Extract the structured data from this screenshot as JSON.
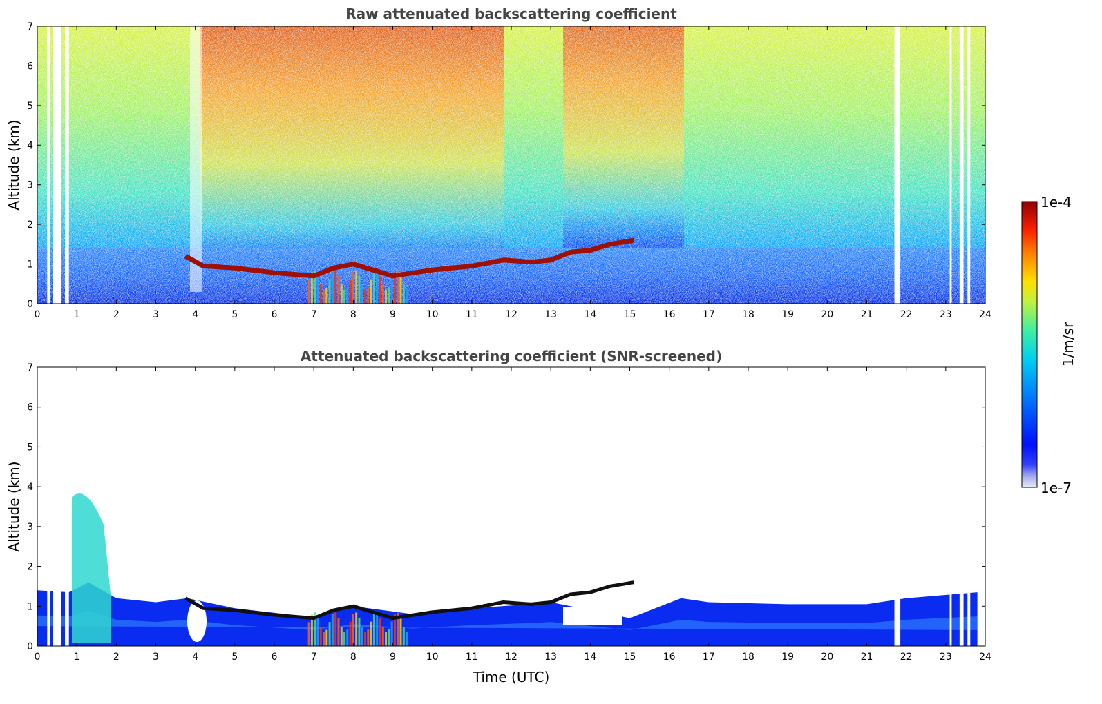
{
  "chart_data": [
    {
      "type": "heatmap",
      "title": "Raw attenuated backscattering coefficient",
      "xlabel": "",
      "ylabel": "Altitude (km)",
      "xlim": [
        0,
        24
      ],
      "ylim": [
        0,
        7
      ],
      "xticks": [
        0,
        1,
        2,
        3,
        4,
        5,
        6,
        7,
        8,
        9,
        10,
        11,
        12,
        13,
        14,
        15,
        16,
        17,
        18,
        19,
        20,
        21,
        22,
        23,
        24
      ],
      "yticks": [
        0,
        1,
        2,
        3,
        4,
        5,
        6,
        7
      ],
      "grid": false,
      "cloud_layer": {
        "x": [
          3.75,
          4.2,
          5,
          6,
          7,
          7.5,
          8,
          9,
          10,
          11,
          11.8,
          12.5,
          13,
          13.5,
          14,
          14.5,
          15.1
        ],
        "y": [
          1.2,
          0.95,
          0.9,
          0.78,
          0.7,
          0.9,
          1.0,
          0.7,
          0.85,
          0.95,
          1.1,
          1.05,
          1.1,
          1.3,
          1.35,
          1.5,
          1.6
        ]
      },
      "data_gaps_hours": [
        [
          0.25,
          0.32
        ],
        [
          0.4,
          0.6
        ],
        [
          0.7,
          0.8
        ],
        [
          21.7,
          21.85
        ],
        [
          23.1,
          23.15
        ],
        [
          23.35,
          23.45
        ],
        [
          23.55,
          23.62
        ]
      ]
    },
    {
      "type": "heatmap",
      "title": "Attenuated backscattering coefficient (SNR-screened)",
      "xlabel": "Time (UTC)",
      "ylabel": "Altitude (km)",
      "xlim": [
        0,
        24
      ],
      "ylim": [
        0,
        7
      ],
      "xticks": [
        0,
        1,
        2,
        3,
        4,
        5,
        6,
        7,
        8,
        9,
        10,
        11,
        12,
        13,
        14,
        15,
        16,
        17,
        18,
        19,
        20,
        21,
        22,
        23,
        24
      ],
      "yticks": [
        0,
        1,
        2,
        3,
        4,
        5,
        6,
        7
      ],
      "grid": false,
      "cloud_layer": {
        "x": [
          3.75,
          4.2,
          5,
          6,
          7,
          7.5,
          8,
          9,
          10,
          11,
          11.8,
          12.5,
          13,
          13.5,
          14,
          14.5,
          15.1
        ],
        "y": [
          1.2,
          0.95,
          0.9,
          0.78,
          0.7,
          0.9,
          1.0,
          0.7,
          0.85,
          0.95,
          1.1,
          1.05,
          1.1,
          1.3,
          1.35,
          1.5,
          1.6
        ]
      }
    }
  ],
  "colorbar": {
    "label": "1/m/sr",
    "min_label": "1e-7",
    "max_label": "1e-4",
    "scale": "log",
    "colormap": "jet"
  }
}
